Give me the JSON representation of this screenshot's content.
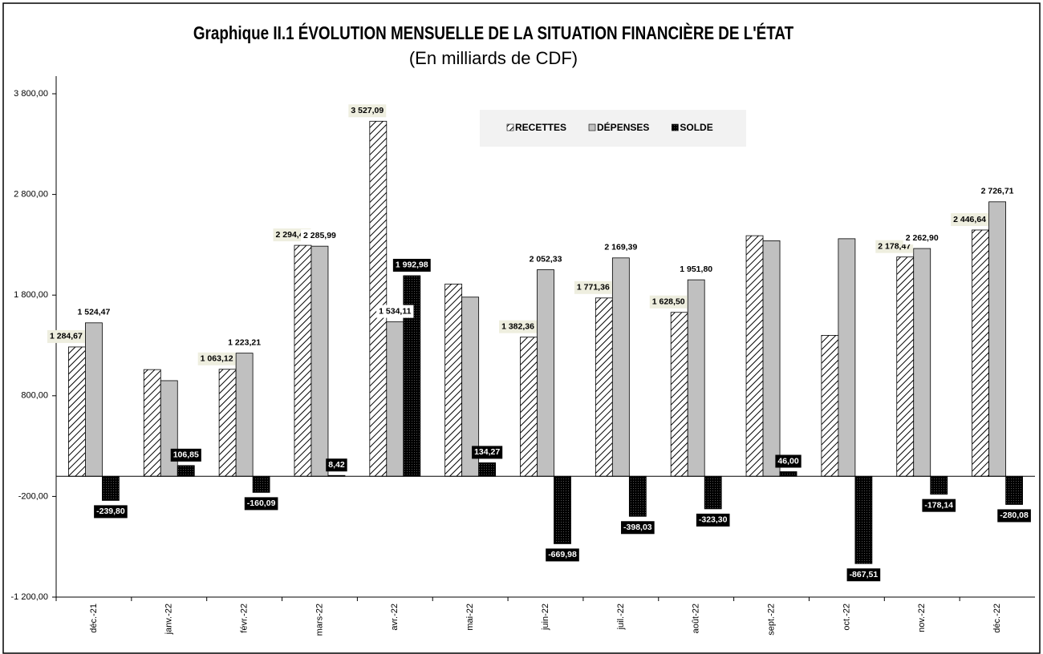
{
  "chart_data": {
    "type": "bar",
    "title": "Graphique II.1  ÉVOLUTION MENSUELLE DE LA SITUATION FINANCIÈRE DE L'ÉTAT",
    "subtitle": "(En milliards de CDF)",
    "categories": [
      "déc.-21",
      "janv.-22",
      "févr.-22",
      "mars-22",
      "avr.-22",
      "mai-22",
      "juin-22",
      "juil.-22",
      "août-22",
      "sept.-22",
      "oct.-22",
      "nov.-22",
      "déc.-22"
    ],
    "series": [
      {
        "name": "RECETTES",
        "color": "#000000",
        "pattern": "hatch",
        "values": [
          1284.67,
          1060,
          1063.12,
          2294.41,
          3527.09,
          1910,
          1382.36,
          1771.36,
          1628.5,
          2390,
          1400,
          2178.47,
          2446.64
        ],
        "value_labels": [
          "1 284,67",
          null,
          "1 063,12",
          "2 294,41",
          "3 527,09",
          null,
          "1 382,36",
          "1 771,36",
          "1 628,50",
          null,
          null,
          "2 178,47",
          "2 446,64"
        ]
      },
      {
        "name": "DÉPENSES",
        "color": "#c0c0c0",
        "pattern": "solid",
        "values": [
          1524.47,
          950,
          1223.21,
          2285.99,
          1534.11,
          1780,
          2052.33,
          2169.39,
          1951.8,
          2340,
          2360,
          2262.9,
          2726.71
        ],
        "value_labels": [
          "1 524,47",
          null,
          "1 223,21",
          "2 285,99",
          "1 534,11",
          null,
          "2 052,33",
          "2 169,39",
          "1 951,80",
          null,
          null,
          "2 262,90",
          "2 726,71"
        ]
      },
      {
        "name": "SOLDE",
        "color": "#000000",
        "pattern": "dots",
        "values": [
          -239.8,
          106.85,
          -160.09,
          8.42,
          1992.98,
          134.27,
          -669.98,
          -398.03,
          -323.3,
          46.0,
          -867.51,
          -178.14,
          -280.08
        ],
        "value_labels": [
          "-239,80",
          "106,85",
          "-160,09",
          "8,42",
          "1 992,98",
          "134,27",
          "-669,98",
          "-398,03",
          "-323,30",
          "46,00",
          "-867,51",
          "-178,14",
          "-280,08"
        ]
      }
    ],
    "ylim": [
      -1200,
      3800
    ],
    "yticks": [
      {
        "value": -1200,
        "label": "-1 200,00"
      },
      {
        "value": -200,
        "label": "-200,00"
      },
      {
        "value": 800,
        "label": "800,00"
      },
      {
        "value": 1800,
        "label": "1 800,00"
      },
      {
        "value": 2800,
        "label": "2 800,00"
      },
      {
        "value": 3800,
        "label": "3 800,00"
      }
    ],
    "grid": false,
    "legend": "top"
  }
}
